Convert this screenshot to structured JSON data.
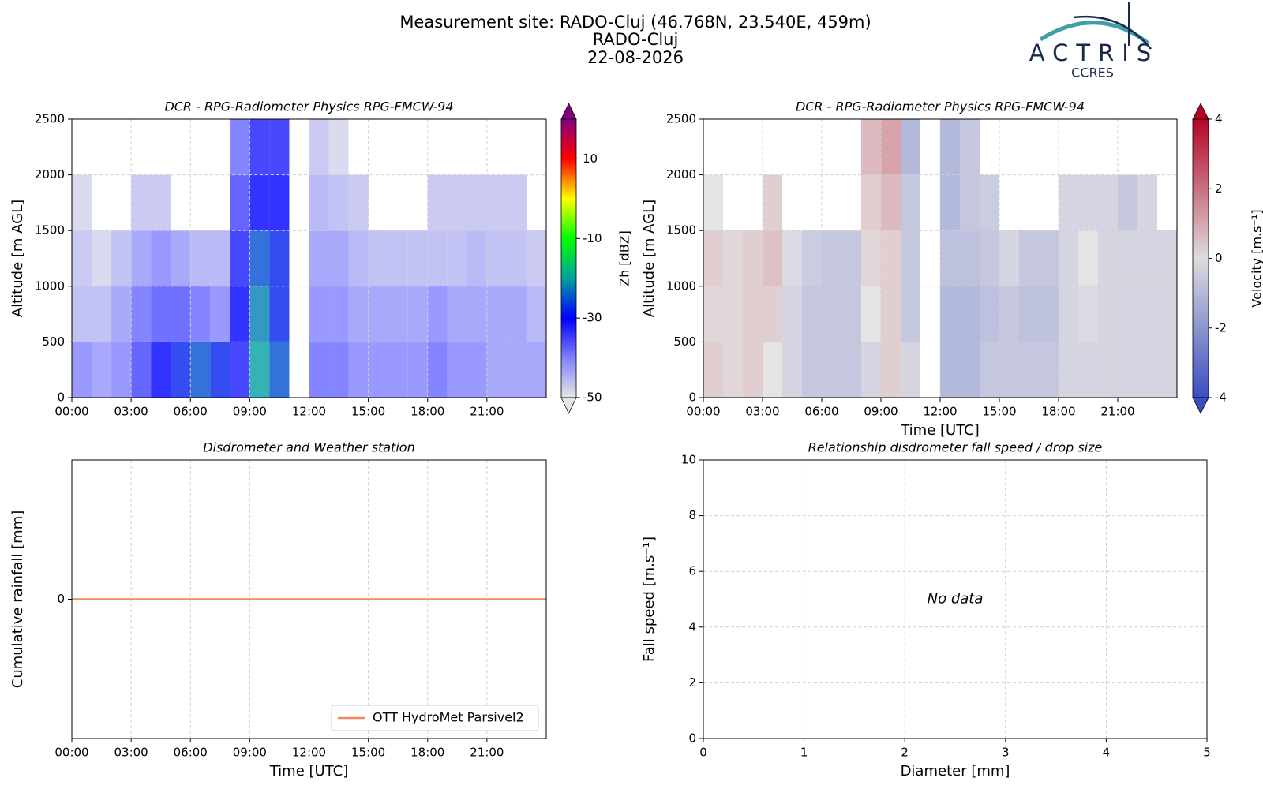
{
  "header": {
    "title_lines": [
      "Measurement site: RADO-Cluj (46.768N, 23.540E, 459m)",
      "RADO-Cluj",
      "22-08-2026"
    ],
    "logo": [
      "ACTRIS",
      "CCRES"
    ]
  },
  "chart_data": [
    {
      "type": "heatmap",
      "title": "DCR - RPG-Radiometer Physics RPG-FMCW-94",
      "ylabel": "Altitude [m AGL]",
      "colorbar_label": "Zh [dBZ]",
      "xlim": [
        0,
        24
      ],
      "xticks": [
        {
          "value": 0,
          "label": "00:00"
        },
        {
          "value": 3,
          "label": "03:00"
        },
        {
          "value": 6,
          "label": "06:00"
        },
        {
          "value": 9,
          "label": "09:00"
        },
        {
          "value": 12,
          "label": "12:00"
        },
        {
          "value": 15,
          "label": "15:00"
        },
        {
          "value": 18,
          "label": "18:00"
        },
        {
          "value": 21,
          "label": "21:00"
        }
      ],
      "ylim": [
        0,
        2500
      ],
      "yticks": [
        0,
        500,
        1000,
        1500,
        2000,
        2500
      ],
      "grid": true,
      "x_bins": [
        0,
        1,
        2,
        3,
        4,
        5,
        6,
        7,
        8,
        9,
        10,
        11,
        12,
        13,
        14,
        15,
        16,
        17,
        18,
        19,
        20,
        21,
        22,
        23,
        24
      ],
      "y_bins": [
        0,
        500,
        1000,
        1500,
        2000,
        2500
      ],
      "z": [
        [
          -40,
          -42,
          -40,
          -35,
          -30,
          -28,
          -25,
          -28,
          -32,
          -20,
          -25,
          null,
          -38,
          -38,
          -40,
          -40,
          -40,
          -40,
          -38,
          -40,
          -40,
          -42,
          -42,
          -42
        ],
        [
          -45,
          -45,
          -42,
          -38,
          -36,
          -36,
          -38,
          -40,
          -30,
          -22,
          -28,
          null,
          -40,
          -40,
          -42,
          -42,
          -42,
          -42,
          -40,
          -42,
          -42,
          -42,
          -42,
          -44
        ],
        [
          -46,
          -48,
          -45,
          -42,
          -40,
          -42,
          -44,
          -44,
          -32,
          -25,
          -28,
          null,
          -42,
          -42,
          -44,
          -45,
          -45,
          -45,
          -45,
          -45,
          -44,
          -45,
          -45,
          -46
        ],
        [
          -48,
          null,
          null,
          -46,
          -46,
          null,
          null,
          null,
          -35,
          -30,
          -30,
          null,
          -44,
          -45,
          -46,
          null,
          null,
          null,
          -46,
          -46,
          -46,
          -46,
          -46,
          null
        ],
        [
          null,
          null,
          null,
          null,
          null,
          null,
          null,
          null,
          -38,
          -32,
          -32,
          null,
          -46,
          -48,
          null,
          null,
          null,
          null,
          null,
          null,
          null,
          null,
          null,
          null
        ]
      ],
      "zlim": [
        -50,
        20
      ],
      "zticks": [
        -50,
        -30,
        -10,
        10
      ],
      "colormap": [
        "#e6e6e6",
        "#8080ff",
        "#0000ff",
        "#00a0a0",
        "#00ff00",
        "#ffff00",
        "#ff0000",
        "#800080"
      ]
    },
    {
      "type": "heatmap",
      "title": "DCR - RPG-Radiometer Physics RPG-FMCW-94",
      "xlabel": "Time [UTC]",
      "ylabel": "Altitude [m AGL]",
      "colorbar_label": "Velocity [m.s⁻¹]",
      "xlim": [
        0,
        24
      ],
      "xticks": [
        {
          "value": 0,
          "label": "00:00"
        },
        {
          "value": 3,
          "label": "03:00"
        },
        {
          "value": 6,
          "label": "06:00"
        },
        {
          "value": 9,
          "label": "09:00"
        },
        {
          "value": 12,
          "label": "12:00"
        },
        {
          "value": 15,
          "label": "15:00"
        },
        {
          "value": 18,
          "label": "18:00"
        },
        {
          "value": 21,
          "label": "21:00"
        }
      ],
      "ylim": [
        0,
        2500
      ],
      "yticks": [
        0,
        500,
        1000,
        1500,
        2000,
        2500
      ],
      "grid": true,
      "x_bins": [
        0,
        1,
        2,
        3,
        4,
        5,
        6,
        7,
        8,
        9,
        10,
        11,
        12,
        13,
        14,
        15,
        16,
        17,
        18,
        19,
        20,
        21,
        22,
        23,
        24
      ],
      "y_bins": [
        0,
        500,
        1000,
        1500,
        2000,
        2500
      ],
      "z": [
        [
          0.5,
          0.3,
          0.5,
          0,
          -0.5,
          -1,
          -1,
          -1,
          -0.5,
          0.5,
          -0.5,
          null,
          -1.5,
          -1.5,
          -1,
          -1,
          -1,
          -1,
          -0.5,
          -0.5,
          -0.5,
          -0.5,
          -0.5,
          -0.5
        ],
        [
          0.3,
          0.3,
          0.5,
          0.5,
          -0.5,
          -1,
          -1,
          -1,
          0,
          0.5,
          -1,
          null,
          -1.5,
          -1.5,
          -1.2,
          -1,
          -1.2,
          -1.2,
          -0.5,
          -0.3,
          -0.5,
          -0.5,
          -0.5,
          -0.5
        ],
        [
          0.5,
          0.3,
          0.5,
          0.8,
          -0.3,
          -0.8,
          -1,
          -1,
          0.3,
          0.5,
          -1,
          null,
          -1.2,
          -1.2,
          -1,
          -0.5,
          -1,
          -1,
          -0.5,
          0,
          -0.5,
          -0.5,
          -0.5,
          -0.5
        ],
        [
          0,
          null,
          null,
          0.5,
          null,
          null,
          null,
          null,
          0.5,
          1,
          -1,
          null,
          -1.5,
          -1,
          -0.8,
          null,
          null,
          null,
          -0.5,
          -0.5,
          -0.5,
          -1,
          -0.5,
          null
        ],
        [
          null,
          null,
          null,
          null,
          null,
          null,
          null,
          null,
          1,
          1.5,
          -1.5,
          null,
          -1.5,
          -1,
          null,
          null,
          null,
          null,
          null,
          null,
          null,
          null,
          null,
          null
        ]
      ],
      "zlim": [
        -4,
        4
      ],
      "zticks": [
        -4,
        -2,
        0,
        2,
        4
      ],
      "colormap": [
        "#3b4cc0",
        "#dddddd",
        "#b40426"
      ]
    },
    {
      "type": "line",
      "title": "Disdrometer and Weather station",
      "xlabel": "Time [UTC]",
      "ylabel": "Cumulative rainfall [mm]",
      "x": [
        0,
        24
      ],
      "series": [
        {
          "name": "OTT HydroMet Parsivel2",
          "color": "#f08a5d",
          "values": [
            0,
            0
          ]
        }
      ],
      "xlim": [
        0,
        24
      ],
      "xticks": [
        {
          "value": 0,
          "label": "00:00"
        },
        {
          "value": 3,
          "label": "03:00"
        },
        {
          "value": 6,
          "label": "06:00"
        },
        {
          "value": 9,
          "label": "09:00"
        },
        {
          "value": 12,
          "label": "12:00"
        },
        {
          "value": 15,
          "label": "15:00"
        },
        {
          "value": 18,
          "label": "18:00"
        },
        {
          "value": 21,
          "label": "21:00"
        }
      ],
      "ylim": [
        -1,
        1
      ],
      "yticks": [
        0
      ],
      "grid": true,
      "legend": "lower right"
    },
    {
      "type": "scatter",
      "title": "Relationship disdrometer fall speed / drop size",
      "xlabel": "Diameter [mm]",
      "ylabel": "Fall speed [m.s⁻¹]",
      "annotation": "No data",
      "x": [],
      "values": [],
      "xlim": [
        0,
        5
      ],
      "xticks": [
        0,
        1,
        2,
        3,
        4,
        5
      ],
      "ylim": [
        0,
        10
      ],
      "yticks": [
        0,
        2,
        4,
        6,
        8,
        10
      ],
      "grid": true
    }
  ]
}
